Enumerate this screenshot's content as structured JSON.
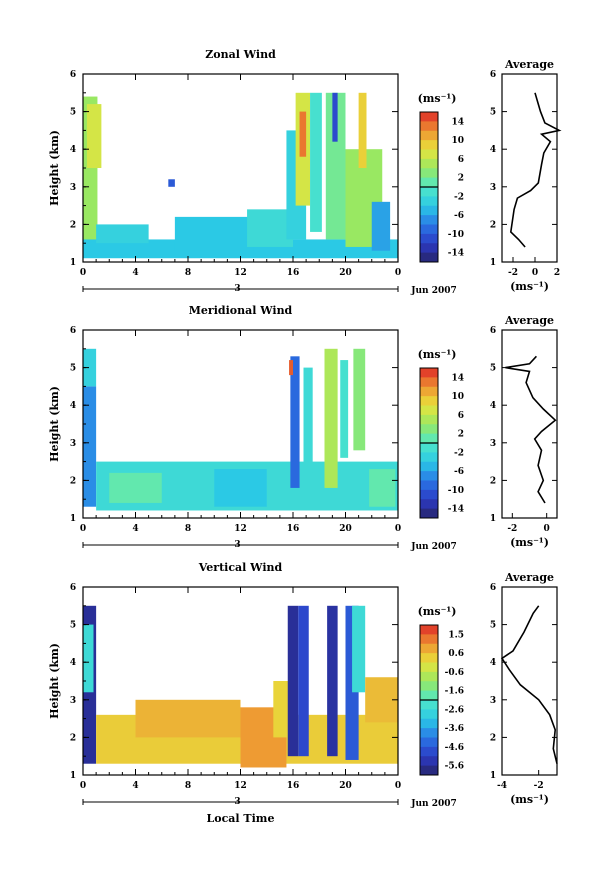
{
  "chart_data": [
    {
      "type": "heatmap",
      "title": "Zonal Wind",
      "ylabel": "Height (km)",
      "ylim": [
        1,
        6
      ],
      "y_ticks": [
        "1",
        "2",
        "3",
        "4",
        "5",
        "6"
      ],
      "x_ticks": [
        "0",
        "4",
        "8",
        "12",
        "16",
        "20",
        "0"
      ],
      "date_day": "3",
      "date_month": "Jun 2007",
      "colorbar": {
        "unit": "(ms⁻¹)",
        "ticks": [
          "14",
          "10",
          "6",
          "2",
          "-2",
          "-6",
          "-10",
          "-14"
        ],
        "range": [
          -16,
          16
        ]
      },
      "cells": [
        {
          "t": [
            0,
            1.1
          ],
          "h": [
            1.3,
            5.4
          ],
          "v": 4
        },
        {
          "t": [
            0.3,
            1.4
          ],
          "h": [
            3.5,
            5.2
          ],
          "v": 7
        },
        {
          "t": [
            0,
            24
          ],
          "h": [
            1.1,
            1.6
          ],
          "v": -4
        },
        {
          "t": [
            1,
            5
          ],
          "h": [
            1.5,
            2.0
          ],
          "v": -3
        },
        {
          "t": [
            7,
            13
          ],
          "h": [
            1.3,
            2.2
          ],
          "v": -4
        },
        {
          "t": [
            12.5,
            16
          ],
          "h": [
            1.4,
            2.4
          ],
          "v": -2
        },
        {
          "t": [
            15.5,
            17
          ],
          "h": [
            1.6,
            4.5
          ],
          "v": -3
        },
        {
          "t": [
            16.2,
            17.3
          ],
          "h": [
            2.5,
            5.5
          ],
          "v": 7
        },
        {
          "t": [
            16.5,
            17.0
          ],
          "h": [
            3.8,
            5.0
          ],
          "v": 13
        },
        {
          "t": [
            17.3,
            18.2
          ],
          "h": [
            1.8,
            5.5
          ],
          "v": -1
        },
        {
          "t": [
            18.5,
            20.0
          ],
          "h": [
            1.6,
            5.5
          ],
          "v": 2
        },
        {
          "t": [
            19.0,
            19.4
          ],
          "h": [
            4.2,
            5.5
          ],
          "v": -11
        },
        {
          "t": [
            20.0,
            22.8
          ],
          "h": [
            1.4,
            4.0
          ],
          "v": 4
        },
        {
          "t": [
            21.0,
            21.6
          ],
          "h": [
            3.5,
            5.5
          ],
          "v": 9
        },
        {
          "t": [
            22.0,
            23.4
          ],
          "h": [
            1.3,
            2.6
          ],
          "v": -6
        },
        {
          "t": [
            6.5,
            7
          ],
          "h": [
            3.0,
            3.2
          ],
          "v": -10
        }
      ],
      "average_panel": {
        "title": "Average",
        "xlabel": "(ms⁻¹)",
        "xlim": [
          -3,
          2
        ],
        "x_ticks": [
          "-2",
          "0",
          "2"
        ],
        "ylim": [
          1,
          6
        ],
        "y_ticks": [
          "1",
          "2",
          "3",
          "4",
          "5",
          "6"
        ],
        "profile": [
          [
            -0.9,
            1.4
          ],
          [
            -1.5,
            1.6
          ],
          [
            -2.2,
            1.8
          ],
          [
            -1.9,
            2.4
          ],
          [
            -1.6,
            2.7
          ],
          [
            -0.4,
            2.9
          ],
          [
            0.3,
            3.1
          ],
          [
            0.6,
            3.6
          ],
          [
            0.8,
            3.9
          ],
          [
            1.4,
            4.2
          ],
          [
            0.6,
            4.4
          ],
          [
            2.2,
            4.5
          ],
          [
            0.9,
            4.7
          ],
          [
            0.5,
            5.0
          ],
          [
            0.3,
            5.2
          ],
          [
            0.0,
            5.5
          ]
        ]
      }
    },
    {
      "type": "heatmap",
      "title": "Meridional Wind",
      "ylabel": "Height (km)",
      "ylim": [
        1,
        6
      ],
      "y_ticks": [
        "1",
        "2",
        "3",
        "4",
        "5",
        "6"
      ],
      "x_ticks": [
        "0",
        "4",
        "8",
        "12",
        "16",
        "20",
        "0"
      ],
      "date_day": "3",
      "date_month": "Jun 2007",
      "colorbar": {
        "unit": "(ms⁻¹)",
        "ticks": [
          "14",
          "10",
          "6",
          "2",
          "-2",
          "-6",
          "-10",
          "-14"
        ],
        "range": [
          -16,
          16
        ]
      },
      "cells": [
        {
          "t": [
            0,
            1.0
          ],
          "h": [
            1.3,
            4.5
          ],
          "v": -7
        },
        {
          "t": [
            0,
            1.0
          ],
          "h": [
            4.5,
            5.5
          ],
          "v": -3
        },
        {
          "t": [
            1,
            24
          ],
          "h": [
            1.2,
            2.5
          ],
          "v": -2
        },
        {
          "t": [
            2,
            6
          ],
          "h": [
            1.4,
            2.2
          ],
          "v": 1
        },
        {
          "t": [
            10,
            14
          ],
          "h": [
            1.3,
            2.3
          ],
          "v": -4
        },
        {
          "t": [
            15.8,
            16.5
          ],
          "h": [
            1.8,
            5.3
          ],
          "v": -9
        },
        {
          "t": [
            16.8,
            17.5
          ],
          "h": [
            2.2,
            5.0
          ],
          "v": -2
        },
        {
          "t": [
            18.4,
            19.4
          ],
          "h": [
            1.8,
            5.5
          ],
          "v": 5
        },
        {
          "t": [
            19.6,
            20.2
          ],
          "h": [
            2.6,
            5.2
          ],
          "v": -1
        },
        {
          "t": [
            20.6,
            21.5
          ],
          "h": [
            2.8,
            5.5
          ],
          "v": 3
        },
        {
          "t": [
            21.8,
            23.8
          ],
          "h": [
            1.3,
            2.3
          ],
          "v": 1
        },
        {
          "t": [
            15.7,
            16.0
          ],
          "h": [
            4.8,
            5.2
          ],
          "v": 14
        }
      ],
      "average_panel": {
        "title": "Average",
        "xlabel": "(ms⁻¹)",
        "xlim": [
          -2.6,
          0.6
        ],
        "x_ticks": [
          "-2",
          "0"
        ],
        "ylim": [
          1,
          6
        ],
        "y_ticks": [
          "1",
          "2",
          "3",
          "4",
          "5",
          "6"
        ],
        "profile": [
          [
            -0.1,
            1.4
          ],
          [
            -0.5,
            1.7
          ],
          [
            -0.2,
            2.0
          ],
          [
            -0.5,
            2.4
          ],
          [
            -0.3,
            2.8
          ],
          [
            -0.7,
            3.1
          ],
          [
            -0.3,
            3.3
          ],
          [
            0.5,
            3.6
          ],
          [
            -0.2,
            3.9
          ],
          [
            -0.8,
            4.2
          ],
          [
            -1.2,
            4.6
          ],
          [
            -1.0,
            4.9
          ],
          [
            -2.4,
            5.0
          ],
          [
            -1.0,
            5.1
          ],
          [
            -0.6,
            5.3
          ]
        ]
      }
    },
    {
      "type": "heatmap",
      "title": "Vertical Wind",
      "xlabel": "Local Time",
      "ylabel": "Height (km)",
      "ylim": [
        1,
        6
      ],
      "y_ticks": [
        "1",
        "2",
        "3",
        "4",
        "5",
        "6"
      ],
      "x_ticks": [
        "0",
        "4",
        "8",
        "12",
        "16",
        "20",
        "0"
      ],
      "date_day": "3",
      "date_month": "Jun 2007",
      "colorbar": {
        "unit": "(ms⁻¹)",
        "ticks": [
          "1.5",
          "0.6",
          "-0.6",
          "-1.6",
          "-2.6",
          "-3.6",
          "-4.6",
          "-5.6"
        ],
        "range": [
          -6,
          2
        ]
      },
      "cells": [
        {
          "t": [
            0,
            1.0
          ],
          "h": [
            1.3,
            5.5
          ],
          "v": -5.5
        },
        {
          "t": [
            0,
            0.8
          ],
          "h": [
            3.2,
            5.0
          ],
          "v": -2.5
        },
        {
          "t": [
            1,
            24
          ],
          "h": [
            1.3,
            2.6
          ],
          "v": 0.3
        },
        {
          "t": [
            4,
            12
          ],
          "h": [
            2.0,
            3.0
          ],
          "v": 0.6
        },
        {
          "t": [
            12,
            15.5
          ],
          "h": [
            1.2,
            2.8
          ],
          "v": 0.9
        },
        {
          "t": [
            14.5,
            16.0
          ],
          "h": [
            2.0,
            3.5
          ],
          "v": 0.2
        },
        {
          "t": [
            15.6,
            16.4
          ],
          "h": [
            1.5,
            5.5
          ],
          "v": -5.5
        },
        {
          "t": [
            16.4,
            17.2
          ],
          "h": [
            1.5,
            5.5
          ],
          "v": -4.8
        },
        {
          "t": [
            18.6,
            19.4
          ],
          "h": [
            1.5,
            5.5
          ],
          "v": -5.4
        },
        {
          "t": [
            20.0,
            21.0
          ],
          "h": [
            1.4,
            5.5
          ],
          "v": -4.5
        },
        {
          "t": [
            20.5,
            21.5
          ],
          "h": [
            3.2,
            5.5
          ],
          "v": -2.5
        },
        {
          "t": [
            21.5,
            24
          ],
          "h": [
            2.4,
            3.6
          ],
          "v": 0.5
        }
      ],
      "average_panel": {
        "title": "Average",
        "xlabel": "(ms⁻¹)",
        "xlim": [
          -4,
          -1
        ],
        "x_ticks": [
          "-4",
          "-2"
        ],
        "ylim": [
          1,
          6
        ],
        "y_ticks": [
          "1",
          "2",
          "3",
          "4",
          "5",
          "6"
        ],
        "profile": [
          [
            -1.0,
            1.3
          ],
          [
            -1.2,
            1.7
          ],
          [
            -1.1,
            2.2
          ],
          [
            -1.4,
            2.6
          ],
          [
            -2.0,
            3.0
          ],
          [
            -3.0,
            3.4
          ],
          [
            -3.6,
            3.8
          ],
          [
            -4.0,
            4.1
          ],
          [
            -3.4,
            4.3
          ],
          [
            -2.8,
            4.8
          ],
          [
            -2.3,
            5.3
          ],
          [
            -2.0,
            5.5
          ]
        ]
      }
    }
  ]
}
